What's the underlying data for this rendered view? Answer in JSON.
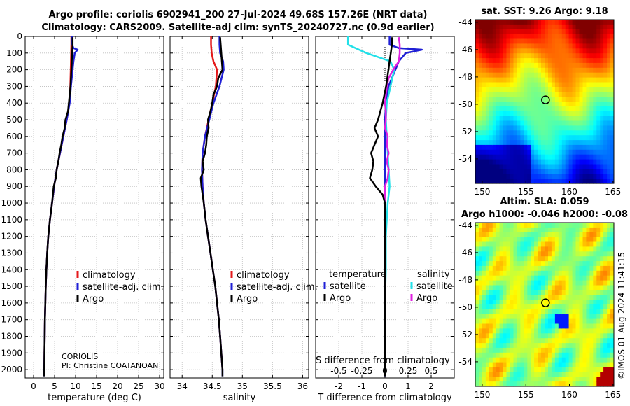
{
  "title_line1": "Argo profile: coriolis 6902941_200 27-Jul-2024 49.68S 157.26E (NRT data)",
  "title_line2": "Climatology: CARS2009. Satellite-adj clim: synTS_20240727.nc (0.9d earlier)",
  "sst_title": "sat. SST: 9.26 Argo: 9.18",
  "sla_title1": "Altim. SLA: 0.059",
  "sla_title2": "Argo h1000: -0.046 h2000: -0.08",
  "credit_line1": "CORIOLIS",
  "credit_line2": "PI: Christine COATANOAN",
  "imos_stamp": "©IMOS 01-Aug-2024 11:41:15",
  "colors": {
    "climatology": "#e41a1c",
    "satellite": "#1f1fd6",
    "argo": "#000000",
    "sat_temp_diff": "#1f1fd6",
    "sat_sal_diff": "#22e0e8",
    "argo_sal_diff": "#e020e0"
  },
  "chart_data": [
    {
      "type": "line",
      "panel": "temperature",
      "xlabel": "temperature (deg C)",
      "ylabel": "",
      "xlim": [
        -2,
        31
      ],
      "ylim": [
        2050,
        0
      ],
      "xticks": [
        0,
        5,
        10,
        15,
        20,
        25,
        30
      ],
      "yticks": [
        0,
        100,
        200,
        300,
        400,
        500,
        600,
        700,
        800,
        900,
        1000,
        1100,
        1200,
        1300,
        1400,
        1500,
        1600,
        1700,
        1800,
        1900,
        2000
      ],
      "legend": [
        "climatology",
        "satellite-adj. clim.",
        "Argo"
      ],
      "series": [
        {
          "name": "climatology",
          "depth": [
            0,
            50,
            100,
            150,
            200,
            300,
            400,
            500,
            600,
            700,
            800,
            900,
            1000,
            1100,
            1200,
            1300,
            1400,
            1500,
            1600,
            1700,
            1800,
            1900,
            2000
          ],
          "values": [
            9.0,
            9.0,
            8.95,
            8.9,
            8.85,
            8.75,
            8.55,
            7.9,
            7.1,
            6.3,
            5.5,
            4.9,
            4.4,
            3.9,
            3.5,
            3.25,
            3.05,
            2.9,
            2.8,
            2.7,
            2.65,
            2.6,
            2.55
          ]
        },
        {
          "name": "satellite-adj. clim.",
          "depth": [
            0,
            50,
            70,
            80,
            100,
            150,
            200,
            300,
            400,
            500,
            600,
            700,
            800,
            900,
            1000,
            1100,
            1200,
            1300,
            1400,
            1500,
            1600,
            1700,
            1800,
            1900,
            2000,
            2040
          ],
          "values": [
            9.2,
            9.2,
            9.5,
            10.5,
            9.8,
            9.5,
            9.3,
            8.9,
            8.6,
            7.9,
            7.1,
            6.3,
            5.5,
            4.9,
            4.4,
            3.9,
            3.5,
            3.25,
            3.05,
            2.9,
            2.8,
            2.7,
            2.65,
            2.6,
            2.55,
            2.55
          ]
        },
        {
          "name": "Argo",
          "depth": [
            5,
            50,
            100,
            150,
            200,
            300,
            400,
            450,
            500,
            550,
            600,
            650,
            700,
            750,
            800,
            850,
            900,
            1000,
            1100,
            1200,
            1300,
            1400,
            1500,
            1600,
            1700,
            1800,
            1900,
            2000,
            2040
          ],
          "values": [
            9.3,
            9.3,
            9.2,
            9.1,
            9.0,
            8.8,
            8.4,
            8.2,
            7.6,
            7.4,
            6.9,
            6.6,
            6.2,
            5.9,
            5.5,
            5.3,
            4.8,
            4.4,
            3.9,
            3.5,
            3.25,
            3.05,
            2.9,
            2.8,
            2.7,
            2.65,
            2.6,
            2.55,
            2.55
          ]
        }
      ]
    },
    {
      "type": "line",
      "panel": "salinity",
      "xlabel": "salinity",
      "ylabel": "",
      "xlim": [
        33.8,
        36.1
      ],
      "ylim": [
        2050,
        0
      ],
      "xticks": [
        34,
        34.5,
        35,
        35.5,
        36
      ],
      "xticklabels": [
        "34",
        "34.5",
        "35",
        "35.5",
        "36"
      ],
      "legend": [
        "climatology",
        "satellite-adj. clim.",
        "Argo"
      ],
      "series": [
        {
          "name": "climatology",
          "depth": [
            0,
            50,
            100,
            150,
            200,
            300,
            400,
            500,
            600,
            700,
            800,
            900,
            1000,
            1100,
            1200,
            1300,
            1400,
            1500,
            1600,
            1700,
            1800,
            1900,
            2000
          ],
          "values": [
            34.48,
            34.48,
            34.49,
            34.52,
            34.58,
            34.56,
            34.5,
            34.44,
            34.38,
            34.34,
            34.33,
            34.34,
            34.36,
            34.39,
            34.43,
            34.47,
            34.51,
            34.55,
            34.58,
            34.61,
            34.63,
            34.65,
            34.67
          ]
        },
        {
          "name": "satellite-adj. clim.",
          "depth": [
            0,
            50,
            100,
            150,
            200,
            300,
            400,
            500,
            600,
            700,
            800,
            900,
            1000,
            1100,
            1200,
            1300,
            1400,
            1500,
            1600,
            1700,
            1800,
            1900,
            2000,
            2040
          ],
          "values": [
            34.62,
            34.62,
            34.63,
            34.68,
            34.69,
            34.62,
            34.52,
            34.45,
            34.38,
            34.34,
            34.33,
            34.34,
            34.36,
            34.39,
            34.43,
            34.47,
            34.51,
            34.55,
            34.58,
            34.61,
            34.63,
            34.65,
            34.67,
            34.67
          ]
        },
        {
          "name": "Argo",
          "depth": [
            5,
            50,
            100,
            150,
            200,
            250,
            300,
            350,
            400,
            450,
            500,
            550,
            600,
            650,
            700,
            750,
            800,
            850,
            900,
            1000,
            1100,
            1200,
            1300,
            1400,
            1500,
            1600,
            1700,
            1800,
            1900,
            2000,
            2040
          ],
          "values": [
            34.63,
            34.64,
            34.65,
            34.66,
            34.67,
            34.6,
            34.58,
            34.52,
            34.5,
            34.47,
            34.43,
            34.44,
            34.41,
            34.4,
            34.38,
            34.34,
            34.36,
            34.31,
            34.32,
            34.36,
            34.39,
            34.43,
            34.47,
            34.51,
            34.55,
            34.58,
            34.61,
            34.63,
            34.65,
            34.67,
            34.67
          ]
        }
      ]
    },
    {
      "type": "line",
      "panel": "difference",
      "xlabel": "T difference from climatology",
      "secondary_xlabel": "S difference from climatology",
      "ylabel": "",
      "xlim": [
        -3,
        3
      ],
      "ylim": [
        2050,
        0
      ],
      "xticks": [
        -2,
        -1,
        0,
        1,
        2
      ],
      "secondary_xticklabels": [
        "-0.5",
        "-0.25",
        "0",
        "0.25",
        "0.5"
      ],
      "legend_groups": [
        "temperature",
        "salinity"
      ],
      "legend": [
        "satellite",
        "Argo",
        "satellite",
        "Argo"
      ],
      "series": [
        {
          "name": "temperature satellite",
          "depth": [
            0,
            50,
            70,
            80,
            100,
            150,
            200,
            300,
            400,
            500,
            700,
            900,
            1100,
            1300,
            1500,
            1700,
            1900,
            2040
          ],
          "values": [
            0.2,
            0.2,
            0.6,
            1.6,
            0.9,
            0.6,
            0.45,
            0.15,
            0.05,
            0,
            0,
            0,
            0,
            0,
            0,
            0,
            0,
            0
          ]
        },
        {
          "name": "temperature Argo",
          "depth": [
            5,
            50,
            100,
            150,
            200,
            300,
            400,
            450,
            500,
            550,
            600,
            650,
            700,
            750,
            800,
            850,
            900,
            950,
            1000,
            1100,
            1200,
            1400,
            1600,
            1800,
            2000,
            2040
          ],
          "values": [
            0.3,
            0.3,
            0.25,
            0.2,
            0.15,
            0.05,
            -0.1,
            -0.2,
            -0.3,
            -0.45,
            -0.3,
            -0.45,
            -0.6,
            -0.5,
            -0.55,
            -0.65,
            -0.4,
            -0.1,
            0,
            0,
            0,
            0,
            0,
            0,
            0,
            0
          ]
        },
        {
          "name": "salinity satellite",
          "depth": [
            0,
            50,
            100,
            150,
            200,
            300,
            400,
            500,
            600,
            700,
            800,
            900,
            1000,
            1100,
            1200,
            1400,
            1600,
            1800,
            2000,
            2040
          ],
          "values": [
            -0.4,
            -0.4,
            -0.2,
            0.06,
            0.1,
            0.06,
            0.02,
            0.01,
            0.02,
            0.03,
            0.04,
            0.05,
            0.03,
            0.02,
            0.01,
            0.01,
            0,
            0,
            0,
            0
          ]
        },
        {
          "name": "salinity Argo",
          "depth": [
            5,
            50,
            100,
            150,
            200,
            250,
            300,
            350,
            400,
            450,
            500,
            550,
            600,
            650,
            700,
            750,
            800,
            850,
            900,
            1000,
            1100,
            1200,
            1400,
            1600,
            1800,
            2000,
            2040
          ],
          "values": [
            0.15,
            0.16,
            0.16,
            0.15,
            0.09,
            0.04,
            0.02,
            0.01,
            0,
            0.01,
            0.01,
            0,
            0.03,
            0.02,
            0.04,
            0.02,
            0.04,
            0.03,
            0,
            0,
            0,
            0,
            0,
            0,
            0,
            0,
            0
          ]
        }
      ]
    },
    {
      "type": "heatmap",
      "panel": "satellite SST map",
      "title": "sat. SST: 9.26 Argo: 9.18",
      "xlim": [
        149.2,
        165.1
      ],
      "ylim": [
        -55.8,
        -43.8
      ],
      "xticks": [
        150,
        155,
        160,
        165
      ],
      "yticks": [
        -44,
        -46,
        -48,
        -50,
        -52,
        -54
      ],
      "profile_location": [
        157.26,
        -49.68
      ]
    },
    {
      "type": "heatmap",
      "panel": "altimetry SLA map",
      "title": "Altim. SLA: 0.059",
      "xlim": [
        149.2,
        165.1
      ],
      "ylim": [
        -55.8,
        -43.8
      ],
      "xticks": [
        150,
        155,
        160,
        165
      ],
      "yticks": [
        -44,
        -46,
        -48,
        -50,
        -52,
        -54
      ],
      "profile_location": [
        157.26,
        -49.68
      ]
    }
  ]
}
